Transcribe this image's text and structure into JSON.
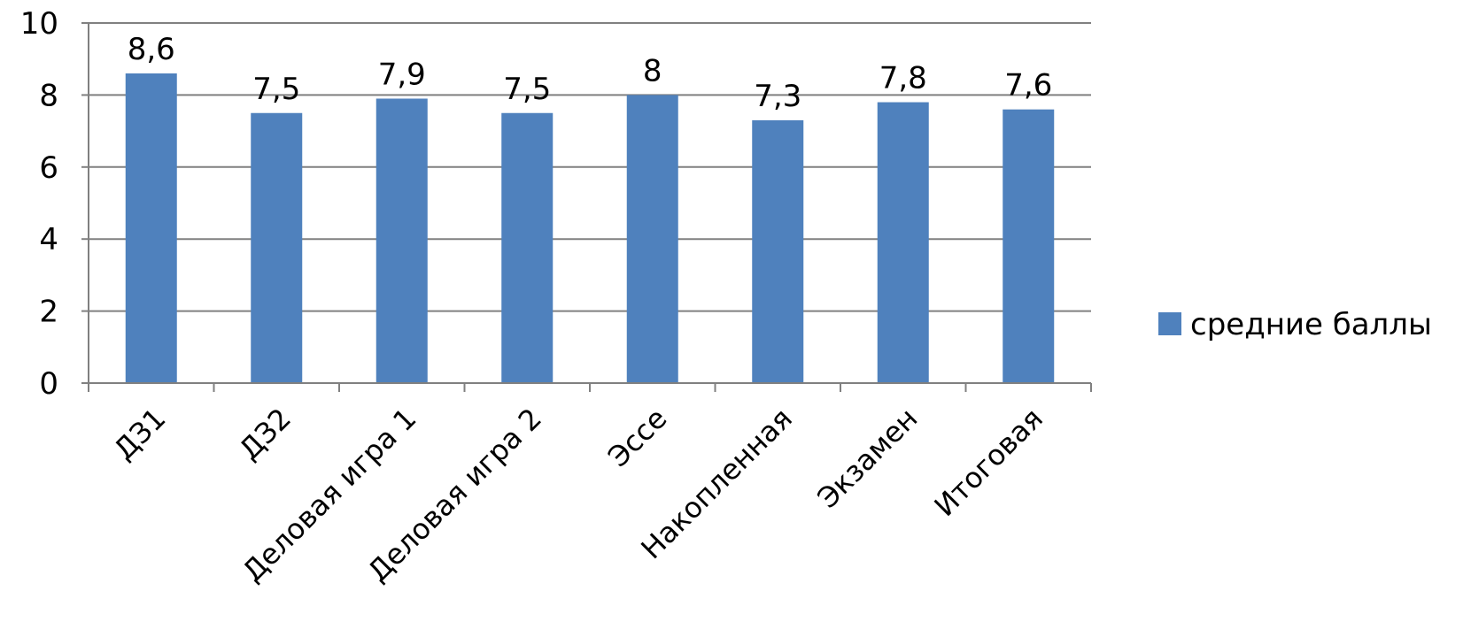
{
  "chart_data": {
    "type": "bar",
    "categories": [
      "ДЗ1",
      "ДЗ2",
      "Деловая игра 1",
      "Деловая игра 2",
      "Эссе",
      "Накопленная",
      "Экзамен",
      "Итоговая"
    ],
    "series": [
      {
        "name": "средние баллы",
        "values": [
          8.6,
          7.5,
          7.9,
          7.5,
          8,
          7.3,
          7.8,
          7.6
        ],
        "data_labels": [
          "8,6",
          "7,5",
          "7,9",
          "7,5",
          "8",
          "7,3",
          "7,8",
          "7,6"
        ],
        "color": "#4f81bd"
      }
    ],
    "ylim": [
      0,
      10
    ],
    "yticks": [
      0,
      2,
      4,
      6,
      8,
      10
    ],
    "grid": true,
    "legend": "right"
  }
}
